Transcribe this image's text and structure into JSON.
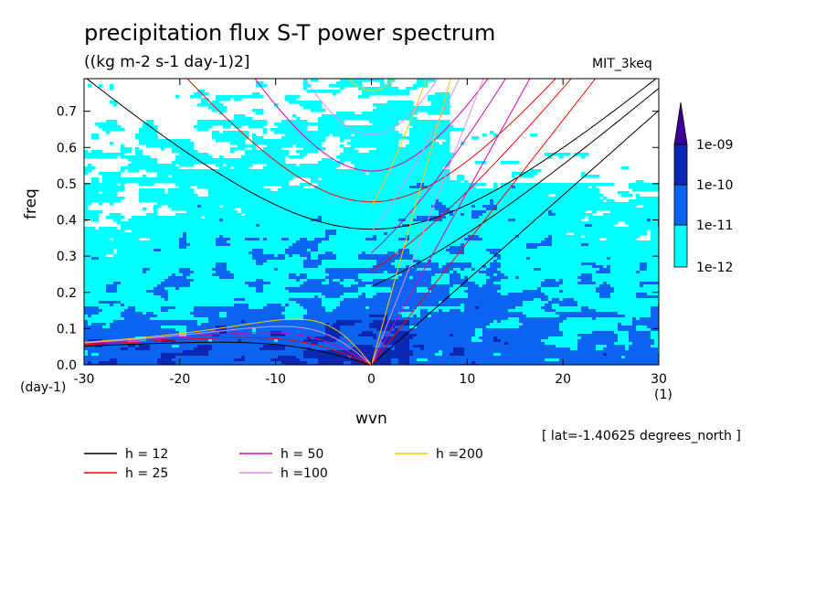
{
  "chart_data": {
    "type": "heatmap",
    "title": "precipitation flux S-T power spectrum",
    "subtitle": "((kg m-2 s-1 day-1)2]",
    "experiment": "MIT_3keq",
    "xlabel": "wvn",
    "ylabel": "freq",
    "x_units": "(1)",
    "y_units": "(day-1)",
    "xlim": [
      -30,
      30
    ],
    "ylim": [
      0,
      0.79
    ],
    "x_ticks": [
      -30,
      -20,
      -10,
      0,
      10,
      20,
      30
    ],
    "y_ticks": [
      0.0,
      0.1,
      0.2,
      0.3,
      0.4,
      0.5,
      0.6,
      0.7
    ],
    "x_tick_labels": [
      "-30",
      "-20",
      "-10",
      "0",
      "10",
      "20",
      "30"
    ],
    "y_tick_labels": [
      "0.0",
      "0.1",
      "0.2",
      "0.3",
      "0.4",
      "0.5",
      "0.6",
      "0.7"
    ],
    "note": "[ lat=-1.40625 degrees_north ]",
    "colorbar": {
      "levels": [
        "1e-12",
        "1e-11",
        "1e-10",
        "1e-09"
      ],
      "colors": [
        "#ffffff",
        "#00ffff",
        "#0a64f0",
        "#0a28b4",
        "#3c0096"
      ]
    },
    "dispersion_curves": [
      {
        "name": "h = 12",
        "h": 12,
        "color": "#000000"
      },
      {
        "name": "h = 25",
        "h": 25,
        "color": "#ff0000"
      },
      {
        "name": "h = 50",
        "h": 50,
        "color": "#dc00b4"
      },
      {
        "name": "h =100",
        "h": 100,
        "color": "#e68ce6"
      },
      {
        "name": "h =200",
        "h": 200,
        "color": "#ffc800"
      }
    ]
  }
}
